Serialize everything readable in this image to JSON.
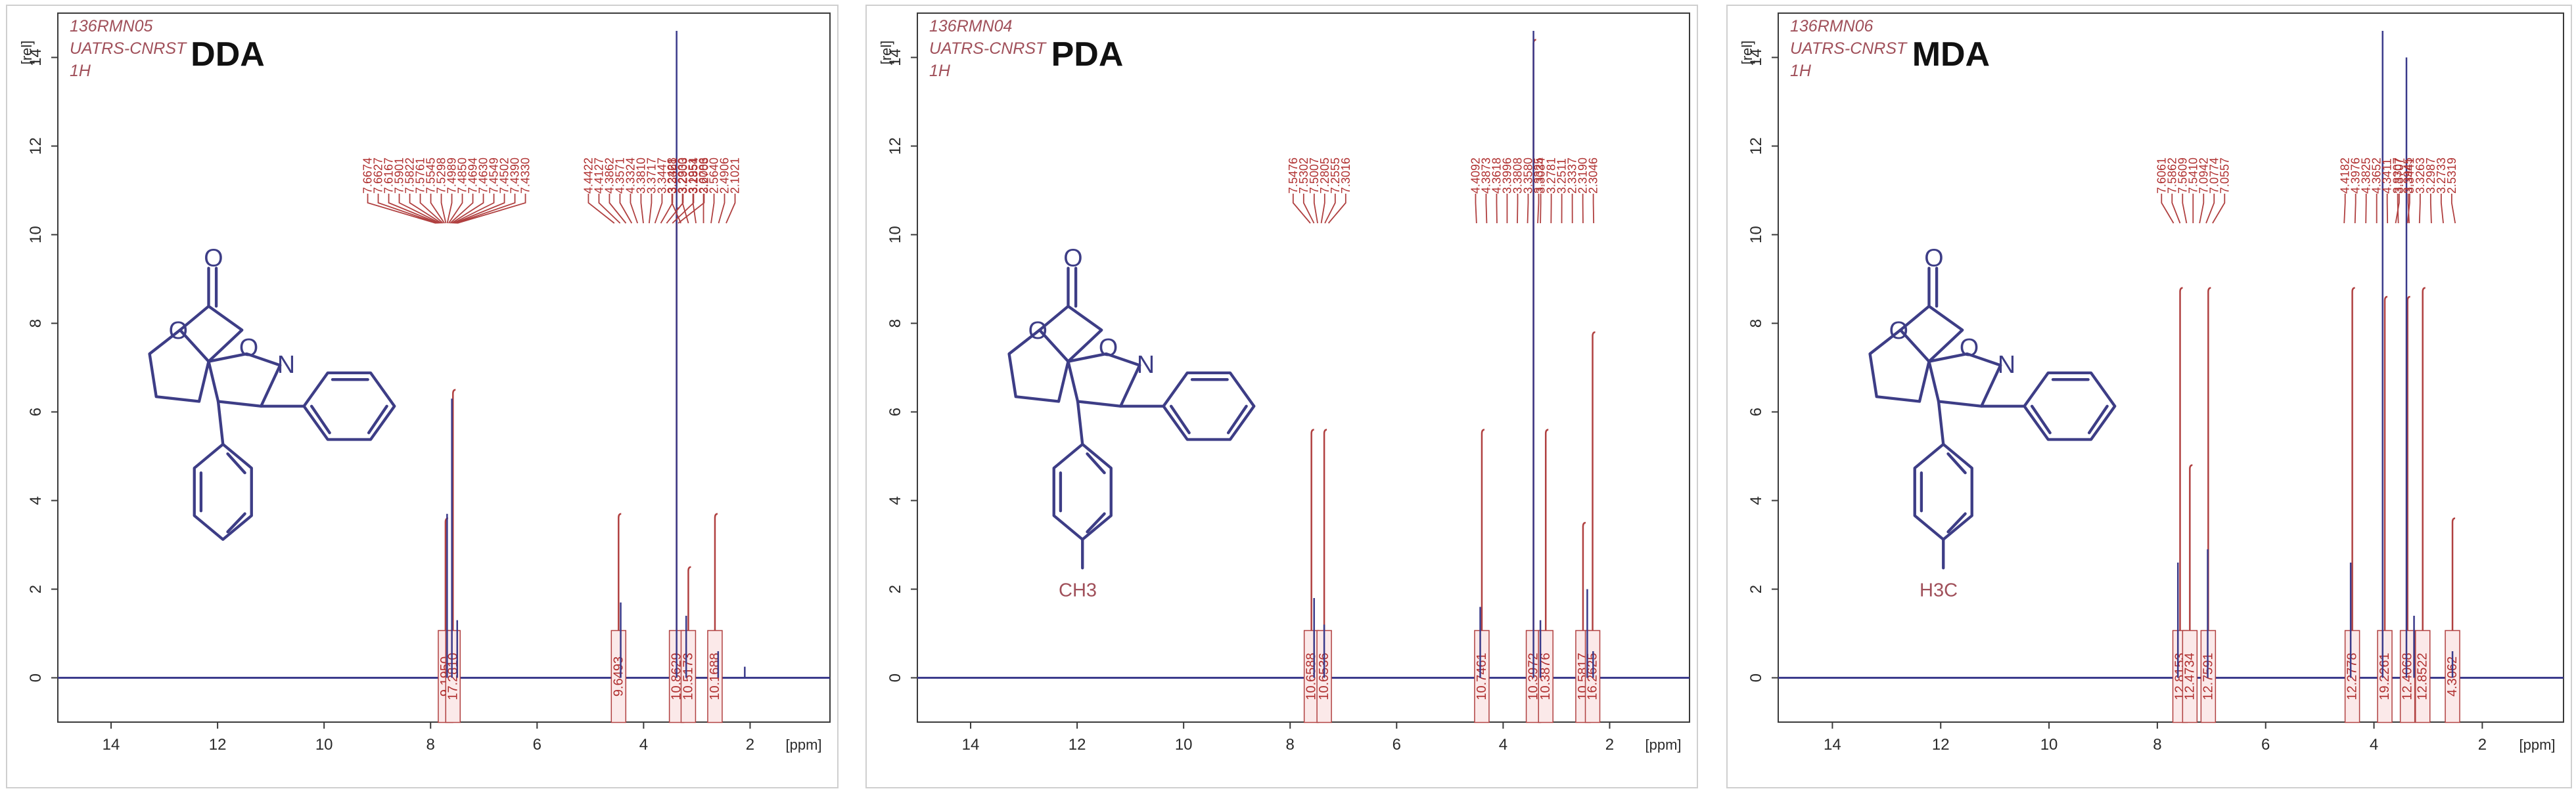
{
  "chart_data": [
    {
      "type": "line",
      "title": "DDA",
      "meta": [
        "136RMN05",
        "UATRS-CNRST",
        "1H"
      ],
      "yunit": "[rel]",
      "xunit": "[ppm]",
      "xlim": [
        15,
        0.5
      ],
      "ylim": [
        -1,
        15
      ],
      "xticks": [
        "14",
        "12",
        "10",
        "8",
        "6",
        "4",
        "2"
      ],
      "yticks": [
        "14",
        "12",
        "10",
        "8",
        "6",
        "4",
        "2",
        "0"
      ],
      "molecule": {
        "substituent": ""
      },
      "peaks": [
        {
          "ppm": 7.69,
          "height": 3.7,
          "color": "#3a3a8a"
        },
        {
          "ppm": 7.6,
          "height": 6.3,
          "color": "#3a3a8a"
        },
        {
          "ppm": 7.5,
          "height": 1.3,
          "color": "#3a3a8a"
        },
        {
          "ppm": 4.43,
          "height": 1.7,
          "color": "#3a3a8a"
        },
        {
          "ppm": 3.38,
          "height": 14.6,
          "color": "#3a3a8a"
        },
        {
          "ppm": 3.2,
          "height": 1.4,
          "color": "#3a3a8a"
        },
        {
          "ppm": 2.6,
          "height": 0.6,
          "color": "#3a3a8a"
        },
        {
          "ppm": 2.1,
          "height": 0.25,
          "color": "#3a3a8a"
        }
      ],
      "integrals": [
        {
          "ppm": 7.72,
          "height": 3.6,
          "label": "9.1950"
        },
        {
          "ppm": 7.58,
          "height": 6.5,
          "label": "17.2810"
        },
        {
          "ppm": 4.47,
          "height": 3.7,
          "label": "9.6493"
        },
        {
          "ppm": 3.38,
          "height": 10.6,
          "label": "10.8629"
        },
        {
          "ppm": 3.16,
          "height": 2.5,
          "label": "10.5173"
        },
        {
          "ppm": 2.66,
          "height": 3.7,
          "label": "10.1688"
        }
      ],
      "peak_labels": [
        {
          "ppm_from": 7.9,
          "ppm_to": 7.5,
          "values": [
            "7.6674",
            "7.6627",
            "7.6167",
            "7.5901",
            "7.5822",
            "7.5761",
            "7.5545",
            "7.5298",
            "7.4989",
            "7.4850",
            "7.4694",
            "7.4630",
            "7.4549",
            "7.4502",
            "7.4390",
            "7.4330"
          ]
        },
        {
          "ppm_from": 4.55,
          "ppm_to": 3.35,
          "values": [
            "4.4422",
            "4.4127",
            "4.3862",
            "4.3571",
            "4.3324",
            "3.3810",
            "3.3717",
            "3.3447",
            "3.3361",
            "3.2903",
            "3.2854",
            "3.2703"
          ]
        },
        {
          "ppm_from": 3.3,
          "ppm_to": 2.45,
          "values": [
            "3.2428",
            "3.2330",
            "3.1951",
            "2.6086",
            "2.5640",
            "2.4906",
            "2.1021"
          ]
        }
      ]
    },
    {
      "type": "line",
      "title": "PDA",
      "meta": [
        "136RMN04",
        "UATRS-CNRST",
        "1H"
      ],
      "yunit": "[rel]",
      "xunit": "[ppm]",
      "xlim": [
        15,
        0.5
      ],
      "ylim": [
        -1,
        15
      ],
      "xticks": [
        "14",
        "12",
        "10",
        "8",
        "6",
        "4",
        "2"
      ],
      "yticks": [
        "14",
        "12",
        "10",
        "8",
        "6",
        "4",
        "2",
        "0"
      ],
      "molecule": {
        "substituent": "CH3"
      },
      "peaks": [
        {
          "ppm": 7.55,
          "height": 1.8,
          "color": "#3a3a8a"
        },
        {
          "ppm": 7.36,
          "height": 1.2,
          "color": "#3a3a8a"
        },
        {
          "ppm": 4.43,
          "height": 1.6,
          "color": "#3a3a8a"
        },
        {
          "ppm": 3.43,
          "height": 14.6,
          "color": "#3a3a8a"
        },
        {
          "ppm": 3.3,
          "height": 1.3,
          "color": "#3a3a8a"
        },
        {
          "ppm": 2.42,
          "height": 2.0,
          "color": "#3a3a8a"
        },
        {
          "ppm": 2.31,
          "height": 0.6,
          "color": "#3a3a8a"
        }
      ],
      "integrals": [
        {
          "ppm": 7.6,
          "height": 5.6,
          "label": "10.6588"
        },
        {
          "ppm": 7.36,
          "height": 5.6,
          "label": "10.6536"
        },
        {
          "ppm": 4.4,
          "height": 5.6,
          "label": "10.7461"
        },
        {
          "ppm": 3.43,
          "height": 14.4,
          "label": "10.3972"
        },
        {
          "ppm": 3.2,
          "height": 5.6,
          "label": "10.3876"
        },
        {
          "ppm": 2.5,
          "height": 3.5,
          "label": "10.5817"
        },
        {
          "ppm": 2.32,
          "height": 7.8,
          "label": "16.2625"
        }
      ],
      "peak_labels": [
        {
          "ppm_from": 7.62,
          "ppm_to": 7.28,
          "values": [
            "7.5476",
            "7.5302",
            "7.5007",
            "7.2805",
            "7.2555",
            "7.3016"
          ]
        },
        {
          "ppm_from": 4.5,
          "ppm_to": 3.35,
          "values": [
            "4.4092",
            "4.3873",
            "4.3618",
            "3.3996",
            "3.3808",
            "3.3580",
            "3.3325"
          ]
        },
        {
          "ppm_from": 3.3,
          "ppm_to": 2.3,
          "values": [
            "3.3034",
            "3.2781",
            "3.2511",
            "2.3337",
            "2.3190",
            "2.3046"
          ]
        }
      ]
    },
    {
      "type": "line",
      "title": "MDA",
      "meta": [
        "136RMN06",
        "UATRS-CNRST",
        "1H"
      ],
      "yunit": "[rel]",
      "xunit": "[ppm]",
      "xlim": [
        15,
        0.5
      ],
      "ylim": [
        -1,
        15
      ],
      "xticks": [
        "14",
        "12",
        "10",
        "8",
        "6",
        "4",
        "2"
      ],
      "yticks": [
        "14",
        "12",
        "10",
        "8",
        "6",
        "4",
        "2",
        "0"
      ],
      "molecule": {
        "substituent": "H3C"
      },
      "peaks": [
        {
          "ppm": 7.62,
          "height": 2.6,
          "color": "#3a3a8a"
        },
        {
          "ppm": 7.07,
          "height": 2.9,
          "color": "#3a3a8a"
        },
        {
          "ppm": 4.43,
          "height": 2.6,
          "color": "#3a3a8a"
        },
        {
          "ppm": 3.84,
          "height": 14.6,
          "color": "#3a3a8a"
        },
        {
          "ppm": 3.4,
          "height": 14.0,
          "color": "#3a3a8a"
        },
        {
          "ppm": 3.26,
          "height": 1.4,
          "color": "#3a3a8a"
        },
        {
          "ppm": 2.55,
          "height": 0.6,
          "color": "#3a3a8a"
        }
      ],
      "integrals": [
        {
          "ppm": 7.58,
          "height": 8.8,
          "label": "12.8153"
        },
        {
          "ppm": 7.4,
          "height": 4.8,
          "label": "12.4734"
        },
        {
          "ppm": 7.06,
          "height": 8.8,
          "label": "12.7591"
        },
        {
          "ppm": 4.4,
          "height": 8.8,
          "label": "12.2778"
        },
        {
          "ppm": 3.8,
          "height": 8.6,
          "label": "19.2261"
        },
        {
          "ppm": 3.38,
          "height": 8.6,
          "label": "12.4068"
        },
        {
          "ppm": 3.1,
          "height": 8.8,
          "label": "12.8522"
        },
        {
          "ppm": 2.55,
          "height": 3.6,
          "label": "4.3062"
        }
      ],
      "peak_labels": [
        {
          "ppm_from": 7.7,
          "ppm_to": 6.98,
          "values": [
            "7.6061",
            "7.5862",
            "7.5609",
            "7.5410",
            "7.0942",
            "7.0774",
            "7.0557"
          ]
        },
        {
          "ppm_from": 4.55,
          "ppm_to": 3.35,
          "values": [
            "4.4182",
            "4.3976",
            "4.3825",
            "4.3652",
            "4.3411",
            "3.8307",
            "3.3945"
          ]
        },
        {
          "ppm_from": 3.6,
          "ppm_to": 2.5,
          "values": [
            "3.3707",
            "3.3441",
            "3.3263",
            "3.2987",
            "3.2733",
            "2.5319"
          ]
        }
      ]
    }
  ]
}
